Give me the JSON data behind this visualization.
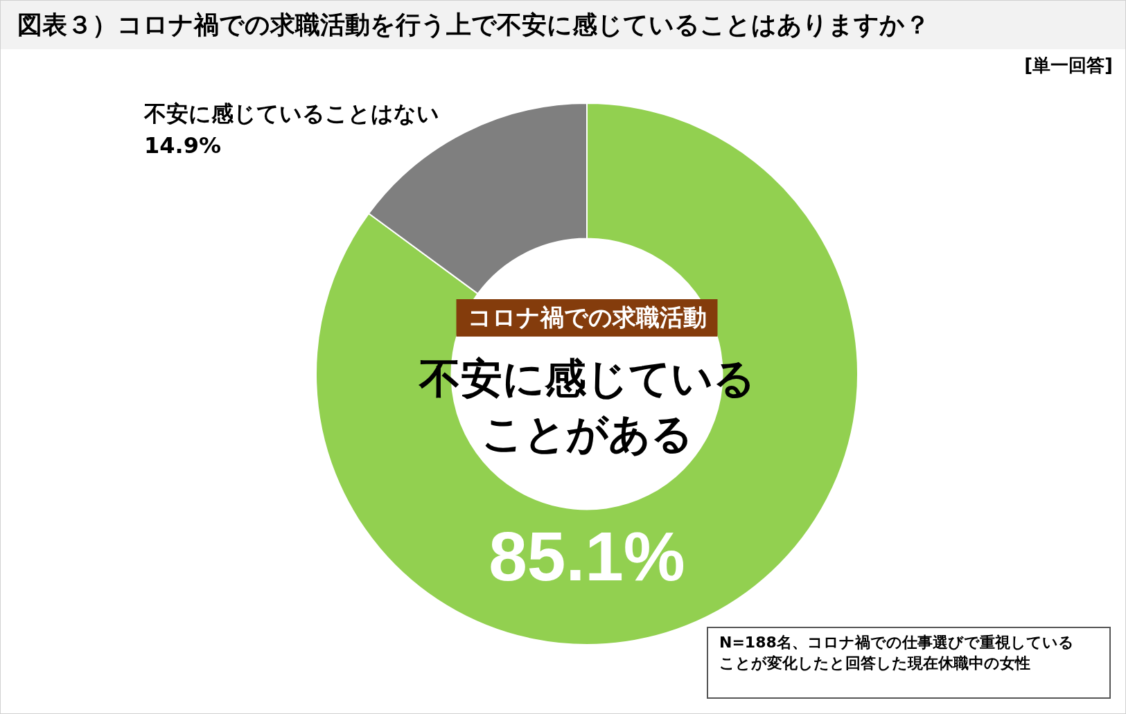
{
  "chart_data": {
    "type": "donut",
    "title": "図表３）コロナ禍での求職活動を行う上で不安に感じていることはありますか？",
    "subtitle": "[単一回答]",
    "categories": [
      "不安に感じていることがある",
      "不安に感じていることはない"
    ],
    "values": [
      85.1,
      14.9
    ],
    "colors": [
      "#92d050",
      "#7f7f7f"
    ],
    "value_labels": [
      "85.1%",
      "14.9%"
    ],
    "legend": false,
    "annotations": [
      "コロナ禍での求職活動",
      "N=188名、コロナ禍での仕事選びで重視していることが変化したと回答した現在休職中の女性"
    ]
  }
}
